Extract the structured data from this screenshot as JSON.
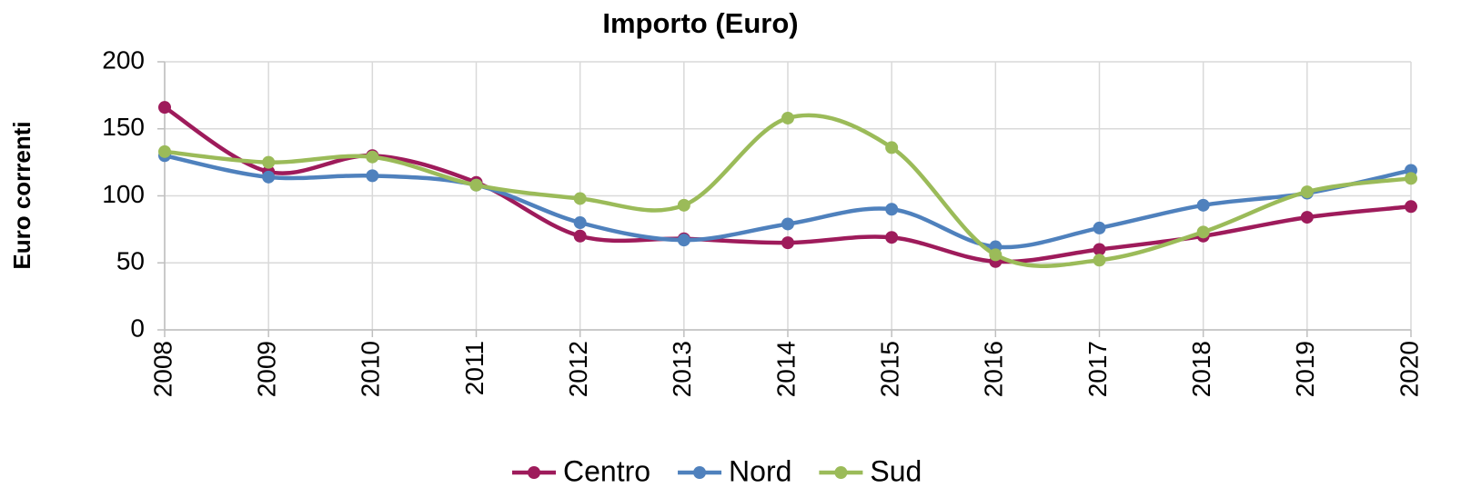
{
  "chart_data": {
    "type": "line",
    "title": "Importo (Euro)",
    "y_label": "Euro correnti",
    "categories": [
      "2008",
      "2009",
      "2010",
      "2011",
      "2012",
      "2013",
      "2014",
      "2015",
      "2016",
      "2017",
      "2018",
      "2019",
      "2020"
    ],
    "series": [
      {
        "name": "Centro",
        "color": "#9e1b5b",
        "values": [
          166,
          118,
          130,
          110,
          70,
          68,
          65,
          69,
          51,
          60,
          70,
          84,
          92
        ]
      },
      {
        "name": "Nord",
        "color": "#4f81bd",
        "values": [
          130,
          114,
          115,
          108,
          80,
          67,
          79,
          90,
          62,
          76,
          93,
          102,
          119
        ]
      },
      {
        "name": "Sud",
        "color": "#9bbb59",
        "values": [
          133,
          125,
          129,
          108,
          98,
          93,
          158,
          136,
          56,
          52,
          73,
          103,
          113
        ]
      }
    ],
    "ylim": [
      0,
      200
    ],
    "yticks": [
      0,
      50,
      100,
      150,
      200
    ],
    "grid": true,
    "smooth": true,
    "legend": "bottom"
  }
}
